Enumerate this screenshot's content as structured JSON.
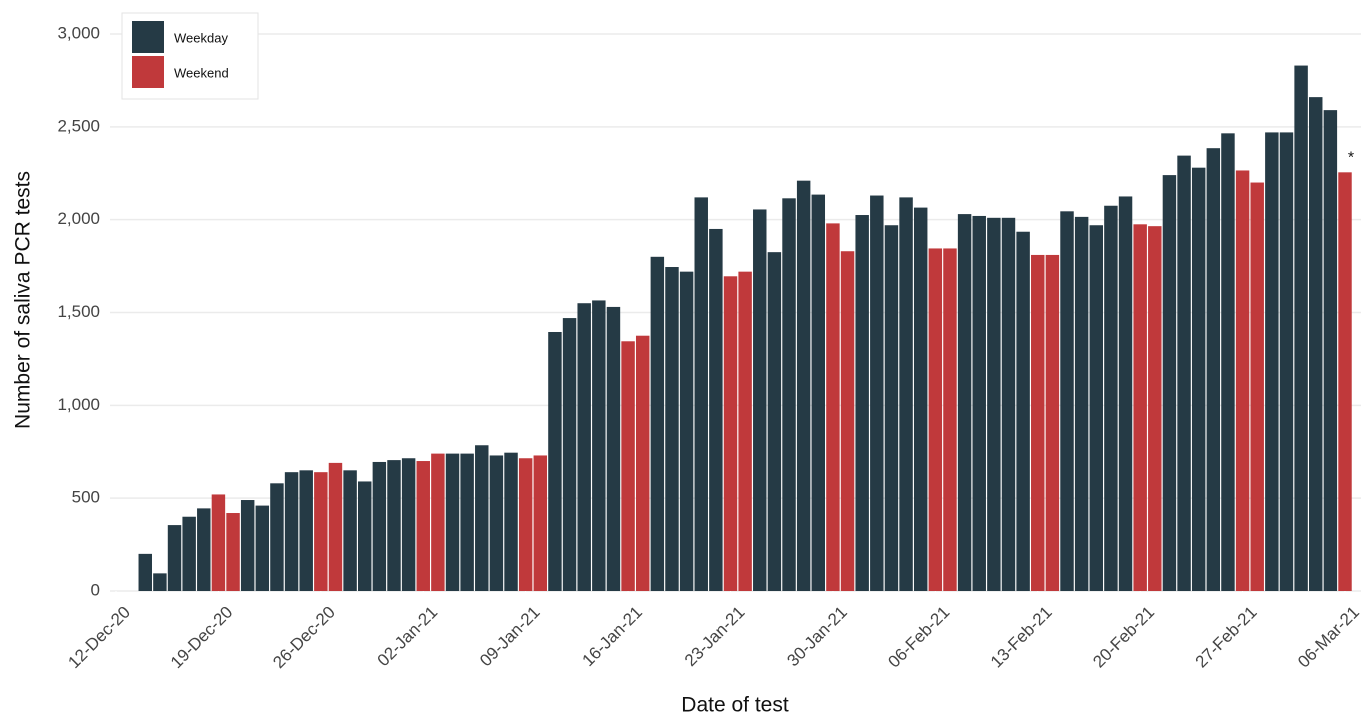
{
  "chart_data": {
    "type": "bar",
    "x_title": "Date of test",
    "y_title": "Number of saliva PCR tests",
    "annotation": "*",
    "x": [
      "14-Dec-20",
      "15-Dec-20",
      "16-Dec-20",
      "17-Dec-20",
      "18-Dec-20",
      "19-Dec-20",
      "20-Dec-20",
      "21-Dec-20",
      "22-Dec-20",
      "23-Dec-20",
      "24-Dec-20",
      "25-Dec-20",
      "26-Dec-20",
      "27-Dec-20",
      "28-Dec-20",
      "29-Dec-20",
      "30-Dec-20",
      "31-Dec-20",
      "01-Jan-21",
      "02-Jan-21",
      "03-Jan-21",
      "04-Jan-21",
      "05-Jan-21",
      "06-Jan-21",
      "07-Jan-21",
      "08-Jan-21",
      "09-Jan-21",
      "10-Jan-21",
      "11-Jan-21",
      "12-Jan-21",
      "13-Jan-21",
      "14-Jan-21",
      "15-Jan-21",
      "16-Jan-21",
      "17-Jan-21",
      "18-Jan-21",
      "19-Jan-21",
      "20-Jan-21",
      "21-Jan-21",
      "22-Jan-21",
      "23-Jan-21",
      "24-Jan-21",
      "25-Jan-21",
      "26-Jan-21",
      "27-Jan-21",
      "28-Jan-21",
      "29-Jan-21",
      "30-Jan-21",
      "31-Jan-21",
      "01-Feb-21",
      "02-Feb-21",
      "03-Feb-21",
      "04-Feb-21",
      "05-Feb-21",
      "06-Feb-21",
      "07-Feb-21",
      "08-Feb-21",
      "09-Feb-21",
      "10-Feb-21",
      "11-Feb-21",
      "12-Feb-21",
      "13-Feb-21",
      "14-Feb-21",
      "15-Feb-21",
      "16-Feb-21",
      "17-Feb-21",
      "18-Feb-21",
      "19-Feb-21",
      "20-Feb-21",
      "21-Feb-21",
      "22-Feb-21",
      "23-Feb-21",
      "24-Feb-21",
      "25-Feb-21",
      "26-Feb-21",
      "27-Feb-21",
      "28-Feb-21",
      "01-Mar-21",
      "02-Mar-21",
      "03-Mar-21",
      "04-Mar-21",
      "05-Mar-21",
      "06-Mar-21"
    ],
    "series": [
      {
        "name": "Weekday",
        "color": "#253a45",
        "values": [
          200,
          95,
          355,
          400,
          445,
          null,
          null,
          490,
          460,
          580,
          640,
          650,
          null,
          null,
          650,
          590,
          695,
          705,
          715,
          null,
          null,
          740,
          740,
          785,
          730,
          745,
          null,
          null,
          1395,
          1470,
          1550,
          1565,
          1530,
          null,
          null,
          1800,
          1745,
          1720,
          2120,
          1950,
          null,
          null,
          2055,
          1825,
          2115,
          2210,
          2135,
          null,
          null,
          2025,
          2130,
          1970,
          2120,
          2065,
          null,
          null,
          2030,
          2020,
          2010,
          2010,
          1935,
          null,
          null,
          2045,
          2015,
          1970,
          2075,
          2125,
          null,
          null,
          2240,
          2345,
          2280,
          2385,
          2465,
          null,
          null,
          2470,
          2470,
          2830,
          2660,
          2590,
          null
        ]
      },
      {
        "name": "Weekend",
        "color": "#c0393b",
        "values": [
          null,
          null,
          null,
          null,
          null,
          520,
          420,
          null,
          null,
          null,
          null,
          null,
          640,
          690,
          null,
          null,
          null,
          null,
          null,
          700,
          740,
          null,
          null,
          null,
          null,
          null,
          715,
          730,
          null,
          null,
          null,
          null,
          null,
          1345,
          1375,
          null,
          null,
          null,
          null,
          null,
          1695,
          1720,
          null,
          null,
          null,
          null,
          null,
          1980,
          1830,
          null,
          null,
          null,
          null,
          null,
          1845,
          1845,
          null,
          null,
          null,
          null,
          null,
          1810,
          1810,
          null,
          null,
          null,
          null,
          null,
          1975,
          1965,
          null,
          null,
          null,
          null,
          null,
          2265,
          2200,
          null,
          null,
          null,
          null,
          null,
          2255
        ]
      }
    ],
    "xlim": [
      "12-Dec-20",
      "06-Mar-21"
    ],
    "xticks": [
      "12-Dec-20",
      "19-Dec-20",
      "26-Dec-20",
      "02-Jan-21",
      "09-Jan-21",
      "16-Jan-21",
      "23-Jan-21",
      "30-Jan-21",
      "06-Feb-21",
      "13-Feb-21",
      "20-Feb-21",
      "27-Feb-21",
      "06-Mar-21"
    ],
    "ylim": [
      0,
      3000
    ],
    "yticks": [
      0,
      {
        "value": 500,
        "label": "500"
      },
      {
        "value": 1000,
        "label": "1,000"
      },
      {
        "value": 1500,
        "label": "1,500"
      },
      {
        "value": 2000,
        "label": "2,000"
      },
      {
        "value": 2500,
        "label": "2,500"
      },
      {
        "value": 3000,
        "label": "3,000"
      }
    ],
    "grid": true,
    "legend": "top-left"
  }
}
